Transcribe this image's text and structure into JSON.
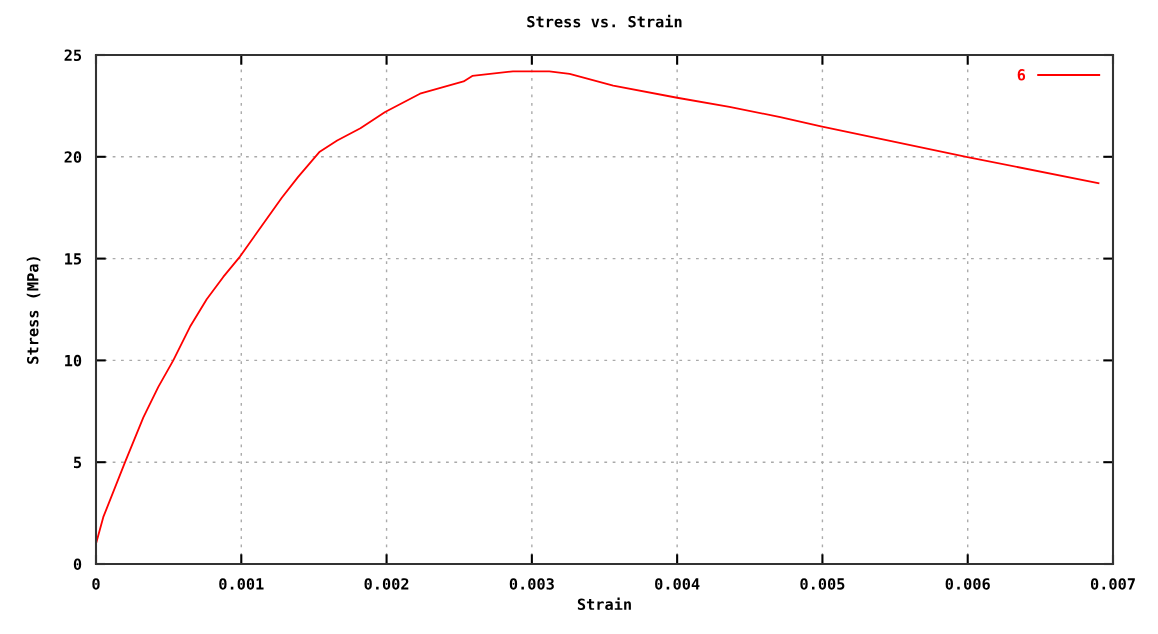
{
  "chart_data": {
    "type": "line",
    "title": "Stress vs. Strain",
    "xlabel": "Strain",
    "ylabel": "Stress (MPa)",
    "xlim": [
      0,
      0.007
    ],
    "xticks": [
      0,
      0.001,
      0.002,
      0.003,
      0.004,
      0.005,
      0.006,
      0.007
    ],
    "ylim": [
      0,
      25
    ],
    "yticks": [
      0,
      5,
      10,
      15,
      20,
      25
    ],
    "grid": true,
    "legend": "top right",
    "marker": "none",
    "line_style": "solid",
    "series": [
      {
        "name": "6",
        "color": "#ff0000",
        "x": [
          0,
          0,
          5e-05,
          0.0002,
          0.000326,
          0.000429,
          0.000532,
          0.000647,
          0.000762,
          0.000876,
          0.000991,
          0.00115,
          0.00128,
          0.00139,
          0.00154,
          0.00166,
          0.00182,
          0.00199,
          0.00223,
          0.00253,
          0.00259,
          0.00287,
          0.00312,
          0.00326,
          0.00356,
          0.004,
          0.00436,
          0.00471,
          0.00499,
          0.00599,
          0.0069
        ],
        "values": [
          0,
          1.0,
          2.3,
          5.0,
          7.2,
          8.7,
          10.0,
          11.65,
          13.0,
          14.1,
          15.1,
          16.7,
          18.0,
          19.0,
          20.25,
          20.8,
          21.4,
          22.2,
          23.1,
          23.7,
          23.97,
          24.2,
          24.2,
          24.07,
          23.5,
          22.9,
          22.45,
          21.95,
          21.5,
          20.0,
          18.7
        ]
      }
    ]
  }
}
